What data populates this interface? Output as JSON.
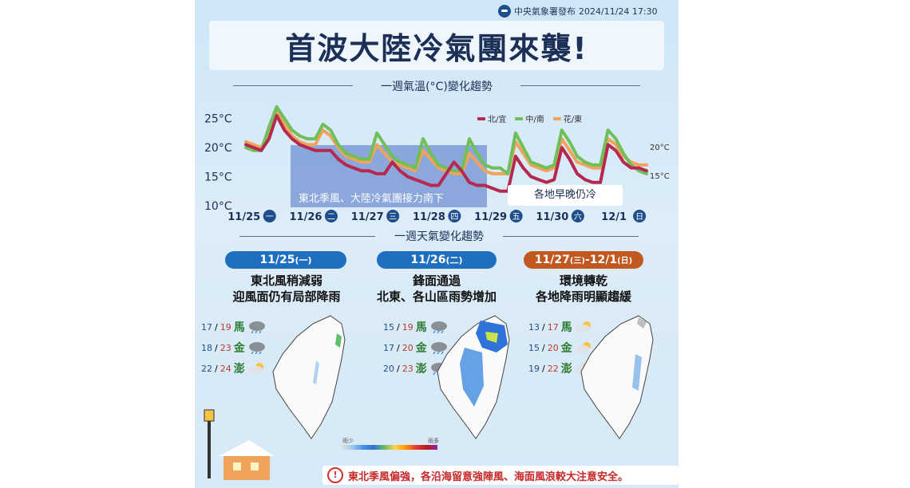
{
  "header": {
    "issuer": "中央氣象署發布",
    "datetime": "2024/11/24 17:30",
    "title": "首波大陸冷氣團來襲!"
  },
  "temperature_section": {
    "title": "一週氣溫(°C)變化趨勢",
    "cold_band_label": "東北季風、大陸冷氣團接力南下",
    "note_label": "各地早晚仍冷",
    "right_label_high": "20°C",
    "right_label_low": "15°C"
  },
  "chart_data": {
    "type": "line",
    "title": "一週氣溫(°C)變化趨勢",
    "y_ticks": [
      "25°C",
      "20°C",
      "15°C",
      "10°C"
    ],
    "ylim": [
      10,
      27
    ],
    "x_ticks": [
      {
        "date": "11/25",
        "weekday": "一"
      },
      {
        "date": "11/26",
        "weekday": "二"
      },
      {
        "date": "11/27",
        "weekday": "三"
      },
      {
        "date": "11/28",
        "weekday": "四"
      },
      {
        "date": "11/29",
        "weekday": "五"
      },
      {
        "date": "11/30",
        "weekday": "六"
      },
      {
        "date": "12/1",
        "weekday": "日"
      }
    ],
    "x": [
      0,
      0.125,
      0.25,
      0.375,
      0.5,
      0.625,
      0.75,
      0.875,
      1,
      1.125,
      1.25,
      1.375,
      1.5,
      1.625,
      1.75,
      1.875,
      2,
      2.125,
      2.25,
      2.375,
      2.5,
      2.625,
      2.75,
      2.875,
      3,
      3.125,
      3.25,
      3.375,
      3.5,
      3.625,
      3.75,
      3.875,
      4,
      4.125,
      4.25,
      4.375,
      4.5,
      4.625,
      4.75,
      4.875,
      5,
      5.125,
      5.25,
      5.375,
      5.5,
      5.625,
      5.75,
      5.875,
      6,
      6.125,
      6.25,
      6.375,
      6.5
    ],
    "series": [
      {
        "name": "北/宜",
        "color": "#b5294e",
        "values": [
          20.5,
          20,
          19.5,
          21.5,
          25.5,
          23,
          21.5,
          20.5,
          20,
          19.5,
          19.5,
          19.5,
          18,
          17,
          16.5,
          16,
          16,
          15.5,
          15.5,
          17.5,
          16,
          15,
          14.5,
          14,
          13.5,
          13.5,
          15.5,
          17.5,
          16,
          14,
          13.5,
          13.5,
          13,
          12.5,
          12.5,
          18.5,
          16.5,
          15,
          14.5,
          14,
          14.5,
          20,
          18,
          15.5,
          14.5,
          14,
          14,
          20.5,
          19.5,
          17.5,
          16.5,
          16.5,
          16
        ]
      },
      {
        "name": "中/南",
        "color": "#6fbf5a",
        "values": [
          20,
          19.5,
          19.5,
          23.5,
          27,
          25,
          23,
          22,
          21.5,
          21.5,
          24,
          23,
          20.5,
          19,
          18.5,
          18,
          18,
          22.5,
          20.5,
          18.5,
          17.5,
          17,
          16.5,
          21.5,
          19,
          17,
          16.5,
          16,
          16,
          21.5,
          19,
          17,
          16.5,
          16.5,
          15.5,
          22.5,
          20,
          17.5,
          17,
          16.5,
          17,
          23,
          21,
          18.5,
          17.5,
          17,
          17,
          23,
          21.5,
          19,
          17,
          16,
          15.5
        ]
      },
      {
        "name": "花/東",
        "color": "#f0a35a",
        "values": [
          21,
          20.5,
          20,
          22.5,
          26.5,
          24,
          22,
          21,
          20.5,
          20.5,
          23,
          22,
          20,
          18.5,
          18,
          17.5,
          17.5,
          20.5,
          19,
          17.5,
          17,
          16.5,
          16,
          19.5,
          18,
          16.5,
          16,
          15.5,
          15.5,
          19,
          17.5,
          16,
          15.5,
          15.5,
          15.5,
          21,
          19,
          17,
          16.5,
          16,
          16.5,
          21.5,
          19.5,
          17.5,
          17,
          16.5,
          16.5,
          21.5,
          20.5,
          18.5,
          17.5,
          17,
          17
        ]
      }
    ]
  },
  "weather_section": {
    "title": "一週天氣變化趨勢",
    "panels": [
      {
        "pill_date": "11/25",
        "pill_weekday": "(一)",
        "pill_color": "#1f6fc1",
        "line1": "東北風稍減弱",
        "line2": "迎風面仍有局部降雨",
        "islands": [
          {
            "lo": "17",
            "hi": "19",
            "name": "馬",
            "icon": "rain-cloud-icon"
          },
          {
            "lo": "18",
            "hi": "23",
            "name": "金",
            "icon": "rain-cloud-icon"
          },
          {
            "lo": "22",
            "hi": "24",
            "name": "澎",
            "icon": "sun-cloud-icon"
          }
        ]
      },
      {
        "pill_date": "11/26",
        "pill_weekday": "(二)",
        "pill_color": "#1f6fc1",
        "line1": "鋒面通過",
        "line2": "北東、各山區雨勢增加",
        "islands": [
          {
            "lo": "15",
            "hi": "19",
            "name": "馬",
            "icon": "rain-cloud-icon"
          },
          {
            "lo": "17",
            "hi": "20",
            "name": "金",
            "icon": "rain-cloud-icon"
          },
          {
            "lo": "20",
            "hi": "23",
            "name": "澎",
            "icon": "rain-cloud-icon"
          }
        ]
      },
      {
        "pill_date": "11/27",
        "pill_weekday": "(三)",
        "pill_date2": "12/1",
        "pill_weekday2": "(日)",
        "pill_color": "#c2571f",
        "line1": "環境轉乾",
        "line2": "各地降雨明顯趨緩",
        "islands": [
          {
            "lo": "13",
            "hi": "17",
            "name": "馬",
            "icon": "sun-cloud-icon"
          },
          {
            "lo": "15",
            "hi": "20",
            "name": "金",
            "icon": "sun-cloud-icon"
          },
          {
            "lo": "19",
            "hi": "22",
            "name": "澎",
            "icon": "sun-cloud-icon"
          }
        ]
      }
    ],
    "rain_scale_low": "雨少",
    "rain_scale_high": "雨多"
  },
  "footer": {
    "warning_icon": "exclamation-circle-icon",
    "warning": "東北季風偏強，各沿海留意強陣風、海面風浪較大注意安全。"
  }
}
